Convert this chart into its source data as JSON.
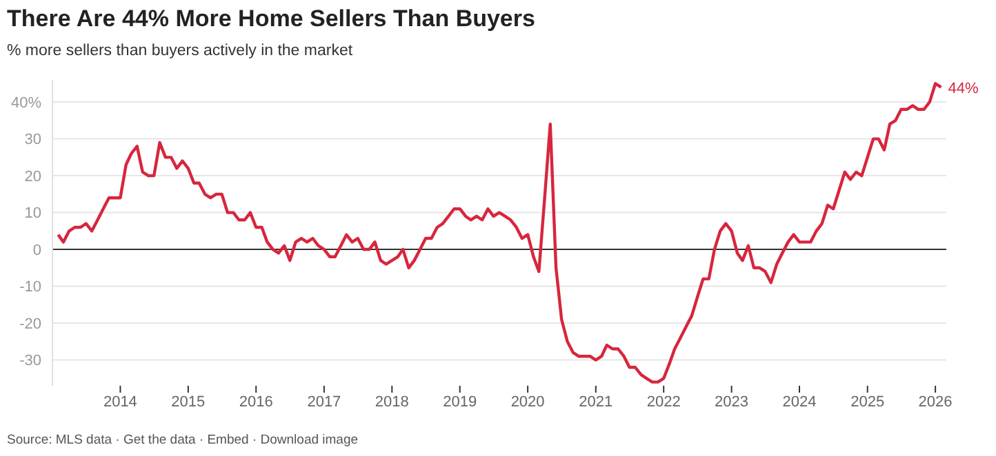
{
  "chart_data": {
    "type": "line",
    "title": "There Are 44% More Home Sellers Than Buyers",
    "subtitle": "% more sellers than buyers actively in the market",
    "x": [
      "2013-02",
      "2013-03",
      "2013-04",
      "2013-05",
      "2013-06",
      "2013-07",
      "2013-08",
      "2013-09",
      "2013-10",
      "2013-11",
      "2013-12",
      "2014-01",
      "2014-02",
      "2014-03",
      "2014-04",
      "2014-05",
      "2014-06",
      "2014-07",
      "2014-08",
      "2014-09",
      "2014-10",
      "2014-11",
      "2014-12",
      "2015-01",
      "2015-02",
      "2015-03",
      "2015-04",
      "2015-05",
      "2015-06",
      "2015-07",
      "2015-08",
      "2015-09",
      "2015-10",
      "2015-11",
      "2015-12",
      "2016-01",
      "2016-02",
      "2016-03",
      "2016-04",
      "2016-05",
      "2016-06",
      "2016-07",
      "2016-08",
      "2016-09",
      "2016-10",
      "2016-11",
      "2016-12",
      "2017-01",
      "2017-02",
      "2017-03",
      "2017-04",
      "2017-05",
      "2017-06",
      "2017-07",
      "2017-08",
      "2017-09",
      "2017-10",
      "2017-11",
      "2017-12",
      "2018-01",
      "2018-02",
      "2018-03",
      "2018-04",
      "2018-05",
      "2018-06",
      "2018-07",
      "2018-08",
      "2018-09",
      "2018-10",
      "2018-11",
      "2018-12",
      "2019-01",
      "2019-02",
      "2019-03",
      "2019-04",
      "2019-05",
      "2019-06",
      "2019-07",
      "2019-08",
      "2019-09",
      "2019-10",
      "2019-11",
      "2019-12",
      "2020-01",
      "2020-02",
      "2020-03",
      "2020-04",
      "2020-05",
      "2020-06",
      "2020-07",
      "2020-08",
      "2020-09",
      "2020-10",
      "2020-11",
      "2020-12",
      "2021-01",
      "2021-02",
      "2021-03",
      "2021-04",
      "2021-05",
      "2021-06",
      "2021-07",
      "2021-08",
      "2021-09",
      "2021-10",
      "2021-11",
      "2021-12",
      "2022-01",
      "2022-02",
      "2022-03",
      "2022-04",
      "2022-05",
      "2022-06",
      "2022-07",
      "2022-08",
      "2022-09",
      "2022-10",
      "2022-11",
      "2022-12",
      "2023-01",
      "2023-02",
      "2023-03",
      "2023-04",
      "2023-05",
      "2023-06",
      "2023-07",
      "2023-08",
      "2023-09",
      "2023-10",
      "2023-11",
      "2023-12",
      "2024-01",
      "2024-02",
      "2024-03",
      "2024-04",
      "2024-05",
      "2024-06",
      "2024-07",
      "2024-08",
      "2024-09",
      "2024-10",
      "2024-11",
      "2024-12",
      "2025-01",
      "2025-02",
      "2025-03",
      "2025-04",
      "2025-05",
      "2025-06",
      "2025-07",
      "2025-08",
      "2025-09",
      "2025-10",
      "2025-11",
      "2025-12",
      "2026-01",
      "2026-02"
    ],
    "series": [
      {
        "color": "#d7263d",
        "values": [
          4,
          2,
          5,
          6,
          6,
          7,
          5,
          8,
          11,
          14,
          14,
          14,
          23,
          26,
          28,
          21,
          20,
          20,
          29,
          25,
          25,
          22,
          24,
          22,
          18,
          18,
          15,
          14,
          15,
          15,
          10,
          10,
          8,
          8,
          10,
          6,
          6,
          2,
          0,
          -1,
          1,
          -3,
          2,
          3,
          2,
          3,
          1,
          0,
          -2,
          -2,
          1,
          4,
          2,
          3,
          0,
          0,
          2,
          -3,
          -4,
          -3,
          -2,
          0,
          -5,
          -3,
          0,
          3,
          3,
          6,
          7,
          9,
          11,
          11,
          9,
          8,
          9,
          8,
          11,
          9,
          10,
          9,
          8,
          6,
          3,
          4,
          -2,
          -6,
          14,
          34,
          -5,
          -19,
          -25,
          -28,
          -29,
          -29,
          -29,
          -30,
          -29,
          -26,
          -27,
          -27,
          -29,
          -32,
          -32,
          -34,
          -35,
          -36,
          -36,
          -35,
          -31,
          -27,
          -24,
          -21,
          -18,
          -13,
          -8,
          -8,
          0,
          5,
          7,
          5,
          -1,
          -3,
          1,
          -5,
          -5,
          -6,
          -9,
          -4,
          -1,
          2,
          4,
          2,
          2,
          2,
          5,
          7,
          12,
          11,
          16,
          21,
          19,
          21,
          20,
          25,
          30,
          30,
          27,
          34,
          35,
          38,
          38,
          39,
          38,
          38,
          40,
          45,
          44
        ]
      }
    ],
    "xlim": [
      "2013-01",
      "2026-03"
    ],
    "xticks": [
      "2014",
      "2015",
      "2016",
      "2017",
      "2018",
      "2019",
      "2020",
      "2021",
      "2022",
      "2023",
      "2024",
      "2025",
      "2026"
    ],
    "ylim": [
      -37,
      46
    ],
    "yticks": [
      {
        "value": 40,
        "label": "40%"
      },
      30,
      20,
      10,
      0,
      -10,
      -20,
      -30
    ],
    "grid": "y",
    "marker": "none",
    "line_style": "solid",
    "ref_lines": [
      {
        "axis": "y",
        "value": 0,
        "color": "#333333"
      }
    ],
    "annotations": [
      {
        "text": "44%",
        "x": "2026-02",
        "y": 44
      },
      "Source: MLS data · Get the data · Embed · Download image"
    ]
  }
}
